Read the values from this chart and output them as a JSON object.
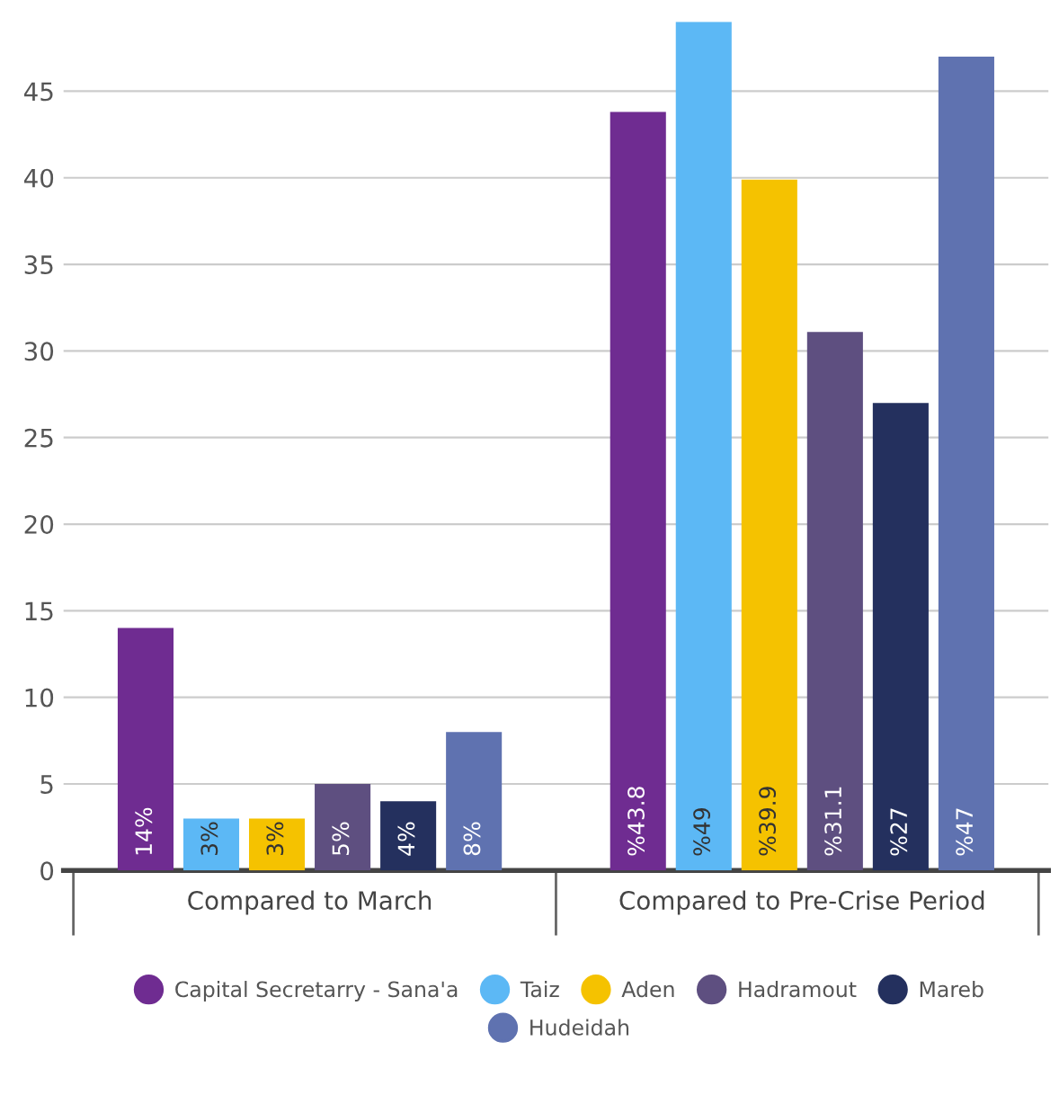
{
  "chart_data": {
    "type": "bar",
    "categories": [
      "Compared to March",
      "Compared to Pre-Crise Period"
    ],
    "series": [
      {
        "name": "Capital Secretarry - Sana'a",
        "color": "#6f2c91",
        "values": [
          14,
          43.8
        ],
        "value_labels": [
          "14%",
          "%43.8"
        ]
      },
      {
        "name": "Taiz",
        "color": "#5cb8f5",
        "values": [
          3,
          49
        ],
        "value_labels": [
          "3%",
          "%49"
        ]
      },
      {
        "name": "Aden",
        "color": "#f5c200",
        "values": [
          3,
          39.9
        ],
        "value_labels": [
          "3%",
          "%39.9"
        ]
      },
      {
        "name": "Hadramout",
        "color": "#5e4f80",
        "values": [
          5,
          31.1
        ],
        "value_labels": [
          "5%",
          "%31.1"
        ]
      },
      {
        "name": "Mareb",
        "color": "#24305e",
        "values": [
          4,
          27
        ],
        "value_labels": [
          "4%",
          "%27"
        ]
      },
      {
        "name": "Hudeidah",
        "color": "#5f72b0",
        "values": [
          8,
          47
        ],
        "value_labels": [
          "8%",
          "%47"
        ]
      }
    ],
    "ylim": [
      0,
      49
    ],
    "yticks": [
      0,
      5,
      10,
      15,
      20,
      25,
      30,
      35,
      40,
      45
    ],
    "grid": "y",
    "legend": "bottom"
  }
}
